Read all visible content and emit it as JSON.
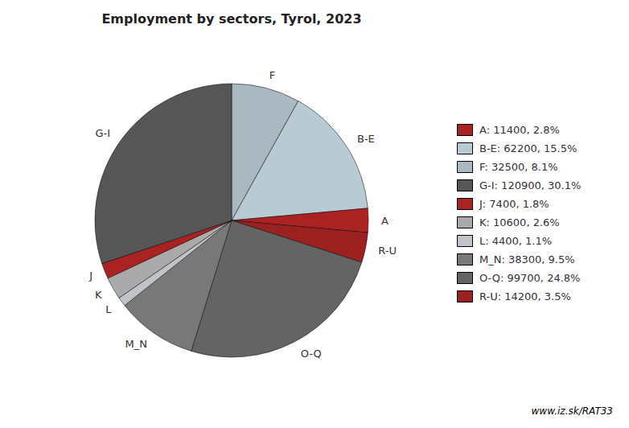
{
  "chart_data": {
    "type": "pie",
    "title": "Employment by sectors, Tyrol, 2023",
    "categories": [
      "F",
      "B-E",
      "A",
      "R-U",
      "O-Q",
      "M_N",
      "L",
      "K",
      "J",
      "G-I"
    ],
    "values": [
      32500,
      62200,
      11400,
      14200,
      99700,
      38300,
      4400,
      10600,
      7400,
      120900
    ],
    "colors": [
      "#aab8c2",
      "#b8cad4",
      "#aa2222",
      "#9b2020",
      "#646464",
      "#787878",
      "#c0c4c8",
      "#aaaaaa",
      "#aa2222",
      "#565656"
    ],
    "legend": "right",
    "legend_entries": [
      {
        "label": "A: 11400, 2.8%",
        "color": "#aa2222"
      },
      {
        "label": "B-E: 62200, 15.5%",
        "color": "#b8cad4"
      },
      {
        "label": "F: 32500, 8.1%",
        "color": "#aab8c2"
      },
      {
        "label": "G-I: 120900, 30.1%",
        "color": "#565656"
      },
      {
        "label": "J: 7400, 1.8%",
        "color": "#aa2222"
      },
      {
        "label": "K: 10600, 2.6%",
        "color": "#aaaaaa"
      },
      {
        "label": "L: 4400, 1.1%",
        "color": "#c0c4c8"
      },
      {
        "label": "M_N: 38300, 9.5%",
        "color": "#787878"
      },
      {
        "label": "O-Q: 99700, 24.8%",
        "color": "#646464"
      },
      {
        "label": "R-U: 14200, 3.5%",
        "color": "#9b2020"
      }
    ],
    "annotations": [
      "www.iz.sk/RAT33"
    ]
  }
}
